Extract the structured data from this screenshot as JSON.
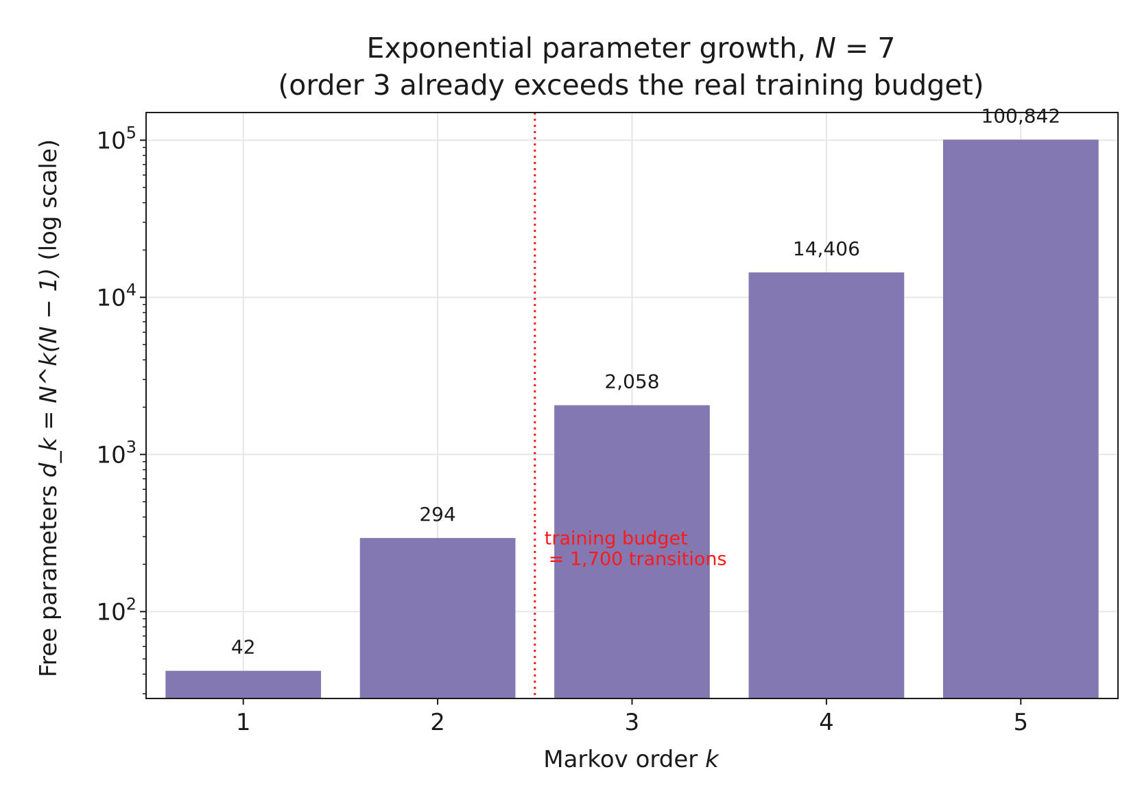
{
  "chart_data": {
    "type": "bar",
    "title_line1": "Exponential parameter growth, ",
    "title_var": "N",
    "title_eq": " = 7",
    "title_line2": "(order 3 already exceeds the real training budget)",
    "xlabel": "Markov order ",
    "xlabel_var": "k",
    "ylabel_prefix": "Free parameters ",
    "ylabel_math": "d_k = N^k(N − 1)",
    "ylabel_suffix": " (log scale)",
    "categories": [
      "1",
      "2",
      "3",
      "4",
      "5"
    ],
    "values": [
      42,
      294,
      2058,
      14406,
      100842
    ],
    "value_labels": [
      "42",
      "294",
      "2,058",
      "14,406",
      "100,842"
    ],
    "y_scale": "log",
    "ylim": [
      28,
      150000
    ],
    "y_ticks": [
      {
        "base": "10",
        "exp": "2"
      },
      {
        "base": "10",
        "exp": "3"
      },
      {
        "base": "10",
        "exp": "4"
      },
      {
        "base": "10",
        "exp": "5"
      }
    ],
    "budget_line": {
      "x": 2.5,
      "label_line1": "training budget",
      "label_line2": "= 1,700 transitions",
      "color": "#ff1a1a"
    },
    "bar_color": "#8074b0",
    "grid": true
  }
}
